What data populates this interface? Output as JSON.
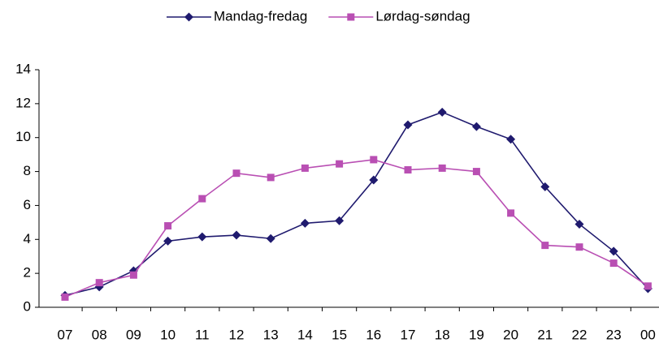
{
  "chart_data": {
    "type": "line",
    "categories": [
      "07",
      "08",
      "09",
      "10",
      "11",
      "12",
      "13",
      "14",
      "15",
      "16",
      "17",
      "18",
      "19",
      "20",
      "21",
      "22",
      "23",
      "00"
    ],
    "series": [
      {
        "name": "Mandag-fredag",
        "color": "#1f1a6e",
        "marker": "diamond",
        "values": [
          0.7,
          1.2,
          2.15,
          3.9,
          4.15,
          4.25,
          4.05,
          4.95,
          5.1,
          7.5,
          10.75,
          11.5,
          10.65,
          9.9,
          7.1,
          4.9,
          3.3,
          1.1
        ]
      },
      {
        "name": "Lørdag-søndag",
        "color": "#b94fb3",
        "marker": "square",
        "values": [
          0.6,
          1.45,
          1.9,
          4.8,
          6.4,
          7.9,
          7.65,
          8.2,
          8.45,
          8.7,
          8.1,
          8.2,
          8.0,
          5.55,
          3.65,
          3.55,
          2.6,
          1.25
        ]
      }
    ],
    "ylim": [
      0,
      14
    ],
    "yticks": [
      0,
      2,
      4,
      6,
      8,
      10,
      12,
      14
    ],
    "grid": false,
    "legend": "top"
  }
}
